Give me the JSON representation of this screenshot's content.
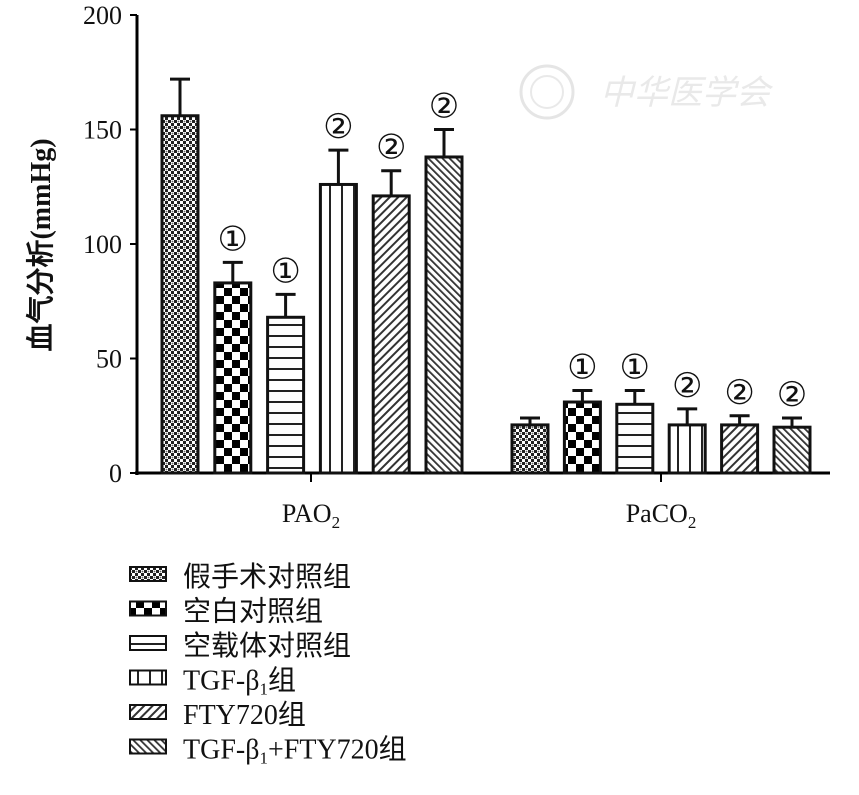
{
  "watermark": "中华医学会",
  "chart_data": {
    "type": "bar",
    "title": "",
    "xlabel": "",
    "ylabel": "血气分析(mmHg)",
    "ylim": [
      0,
      200
    ],
    "yticks": [
      0,
      50,
      100,
      150,
      200
    ],
    "grid": false,
    "legend_position": "bottom-left",
    "categories": [
      "PAO2",
      "PaCO2"
    ],
    "category_labels": [
      {
        "main": "PAO",
        "sub": "2"
      },
      {
        "main": "PaCO",
        "sub": "2"
      }
    ],
    "series": [
      {
        "name": "假手术对照组",
        "pattern": "fine-check",
        "values": [
          156,
          21
        ],
        "errors": [
          172,
          24
        ],
        "annotations": [
          "",
          ""
        ]
      },
      {
        "name": "空白对照组",
        "pattern": "checkerboard",
        "values": [
          83,
          31
        ],
        "errors": [
          92,
          36
        ],
        "annotations": [
          "①",
          "①"
        ]
      },
      {
        "name": "空载体对照组",
        "pattern": "horizontal-lines",
        "values": [
          68,
          30
        ],
        "errors": [
          78,
          36
        ],
        "annotations": [
          "①",
          "①"
        ]
      },
      {
        "name": "TGF-β1组",
        "pattern": "vertical-lines",
        "values": [
          126,
          21
        ],
        "errors": [
          141,
          28
        ],
        "annotations": [
          "②",
          "②"
        ]
      },
      {
        "name": "FTY720组",
        "pattern": "diagonal-up",
        "values": [
          121,
          21
        ],
        "errors": [
          132,
          25
        ],
        "annotations": [
          "②",
          "②"
        ]
      },
      {
        "name": "TGF-β1+FTY720组",
        "pattern": "diagonal-down",
        "values": [
          138,
          20
        ],
        "errors": [
          150,
          24
        ],
        "annotations": [
          "②",
          "②"
        ]
      }
    ],
    "legend_labels": [
      {
        "main": "假手术对照组",
        "sub": "",
        "tail": ""
      },
      {
        "main": "空白对照组",
        "sub": "",
        "tail": ""
      },
      {
        "main": "空载体对照组",
        "sub": "",
        "tail": ""
      },
      {
        "main": "TGF-β",
        "sub": "1",
        "tail": "组"
      },
      {
        "main": "FTY720组",
        "sub": "",
        "tail": ""
      },
      {
        "main": "TGF-β",
        "sub": "1",
        "tail": "+FTY720组"
      }
    ]
  }
}
